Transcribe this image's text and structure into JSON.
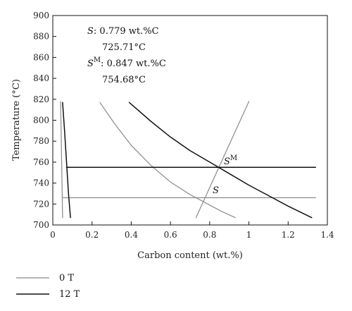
{
  "colors": {
    "gray": "#8a8a8a",
    "black": "#111111"
  },
  "chart_data": {
    "type": "line",
    "xlabel": "Carbon content (wt.%)",
    "ylabel": "Temperature (°C)",
    "xlim": [
      0,
      1.4
    ],
    "ylim": [
      700,
      900
    ],
    "xticks": [
      0,
      0.2,
      0.4,
      0.6,
      0.8,
      1,
      1.2,
      1.4
    ],
    "xtick_labels": [
      "0",
      "0.2",
      "0.4",
      "0.6",
      "0.8",
      "1",
      "1.2",
      "1.4"
    ],
    "yticks": [
      700,
      720,
      740,
      760,
      780,
      800,
      820,
      840,
      860,
      880,
      900
    ],
    "ytick_labels": [
      "700",
      "720",
      "740",
      "760",
      "780",
      "800",
      "820",
      "840",
      "860",
      "880",
      "900"
    ],
    "grid": false,
    "legend_position": "bottom-left",
    "legend": [
      {
        "label": "0 T",
        "color": "#8a8a8a"
      },
      {
        "label": "12 T",
        "color": "#111111"
      }
    ],
    "series": [
      {
        "group": "0 T",
        "color": "#8a8a8a",
        "x": [
          0.04,
          0.05
        ],
        "y": [
          818,
          707
        ]
      },
      {
        "group": "0 T",
        "color": "#8a8a8a",
        "x": [
          0.05,
          1.34
        ],
        "y": [
          726,
          726
        ]
      },
      {
        "group": "0 T",
        "color": "#8a8a8a",
        "x": [
          0.24,
          0.31,
          0.4,
          0.5,
          0.6,
          0.7,
          0.79,
          0.86,
          0.93
        ],
        "y": [
          817,
          798,
          776,
          757,
          741,
          729,
          720,
          713,
          707
        ]
      },
      {
        "group": "0 T",
        "color": "#8a8a8a",
        "x": [
          0.73,
          1.0
        ],
        "y": [
          707,
          818
        ]
      },
      {
        "group": "12 T",
        "color": "#111111",
        "x": [
          0.05,
          0.06,
          0.07,
          0.08,
          0.09
        ],
        "y": [
          817,
          790,
          760,
          730,
          707
        ]
      },
      {
        "group": "12 T",
        "color": "#111111",
        "x": [
          0.07,
          1.34
        ],
        "y": [
          755,
          755
        ]
      },
      {
        "group": "12 T",
        "color": "#111111",
        "x": [
          0.39,
          0.5,
          0.6,
          0.7,
          0.8,
          0.9,
          1.0,
          1.1,
          1.2,
          1.32
        ],
        "y": [
          817,
          799,
          784,
          771,
          760,
          749,
          738,
          728,
          718,
          707
        ]
      }
    ],
    "annotations": {
      "s_text": ": 0.779 wt.%C",
      "s_temp": "725.71°C",
      "sm_text": ": 0.847 wt.%C",
      "sm_temp": "754.68°C",
      "point_s": {
        "label": "S",
        "x": 0.779,
        "y": 725.71
      },
      "point_sm": {
        "label": "S",
        "sup": "M",
        "x": 0.847,
        "y": 754.68
      }
    }
  }
}
